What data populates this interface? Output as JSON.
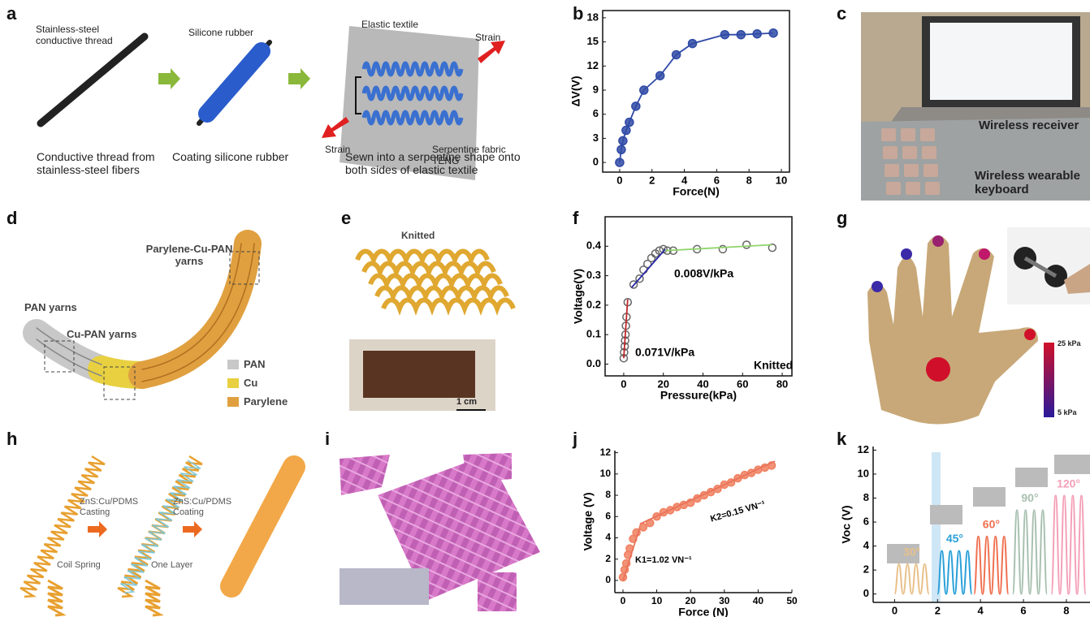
{
  "panel_labels": [
    "a",
    "b",
    "c",
    "d",
    "e",
    "f",
    "g",
    "h",
    "i",
    "j",
    "k"
  ],
  "panel_a": {
    "thread_label": "Stainless-steel conductive thread",
    "rubber_label": "Silicone rubber",
    "textile_label": "Elastic textile",
    "strain_right": "Strain",
    "strain_left": "Strain",
    "teng_label": "Serpentine fabric TENG",
    "captions": [
      "Conductive thread from stainless-steel fibers",
      "Coating silicone rubber",
      "Sewn into a serpentine shape onto both sides of elastic textile"
    ]
  },
  "panel_c": {
    "labels": [
      "Wireless receiver",
      "Wireless wearable keyboard"
    ]
  },
  "panel_d": {
    "labels": [
      "Parylene-Cu-PAN yarns",
      "PAN yarns",
      "Cu-PAN yarns"
    ],
    "legend": [
      "PAN",
      "Cu",
      "Parylene"
    ]
  },
  "panel_e": {
    "title": "Knitted",
    "scale": "1 cm"
  },
  "panel_g": {
    "colorbar": [
      "25 kPa",
      "5 kPa"
    ]
  },
  "panel_h": {
    "labels": [
      "ZnS:Cu/PDMS Casting",
      "ZnS:Cu/PDMS Coating",
      "Coil Spring",
      "One Layer"
    ]
  },
  "chart_data": [
    {
      "type": "line",
      "xlabel": "Force(N)",
      "ylabel": "ΔV(V)",
      "x": [
        0,
        0.1,
        0.2,
        0.4,
        0.6,
        1,
        1.5,
        2.5,
        3.5,
        4.5,
        6.5,
        7.5,
        8.5,
        9.5
      ],
      "values": [
        0,
        1.6,
        2.7,
        4,
        5,
        7,
        9,
        10.8,
        13.4,
        14.8,
        15.9,
        15.9,
        16,
        16.1
      ],
      "color": "#2f4aa6",
      "markers": true,
      "xlim": [
        -1.05,
        10.5
      ],
      "ylim": [
        -1.2,
        18.9
      ],
      "xticks": [
        0,
        2,
        4,
        6,
        8,
        10
      ],
      "yticks": [
        0,
        3,
        6,
        9,
        12,
        15,
        18
      ]
    },
    {
      "type": "scatter",
      "xlabel": "Pressure(kPa)",
      "ylabel": "Voltage(V)",
      "x": [
        0,
        0.2,
        0.5,
        0.7,
        0.9,
        1.1,
        1.4,
        2,
        5,
        8,
        10,
        12,
        14,
        16,
        18,
        20,
        22,
        25,
        37,
        50,
        62,
        75
      ],
      "values": [
        0.02,
        0.04,
        0.06,
        0.08,
        0.1,
        0.13,
        0.16,
        0.21,
        0.27,
        0.29,
        0.32,
        0.34,
        0.36,
        0.375,
        0.385,
        0.39,
        0.385,
        0.385,
        0.39,
        0.39,
        0.405,
        0.395
      ],
      "color": "#666666",
      "fits": [
        {
          "color": "#c0282c",
          "x": [
            0,
            2
          ],
          "values": [
            0.02,
            0.22
          ]
        },
        {
          "color": "#2a2aa8",
          "x": [
            4,
            21
          ],
          "values": [
            0.26,
            0.39
          ]
        },
        {
          "color": "#8fd46a",
          "x": [
            21,
            75
          ],
          "values": [
            0.385,
            0.405
          ]
        }
      ],
      "annotations": [
        "0.008V/kPa",
        "0.071V/kPa",
        "Knitted"
      ],
      "xlim": [
        -9.4,
        84.9
      ],
      "ylim": [
        -0.04,
        0.5
      ],
      "xticks": [
        0,
        20,
        40,
        60,
        80
      ],
      "yticks": [
        {
          "value": 0,
          "label": "0.0"
        },
        0.1,
        0.2,
        0.3,
        0.4
      ]
    },
    {
      "type": "scatter",
      "xlabel": "Force (N)",
      "ylabel": "Voltage (V)",
      "x": [
        0,
        0.5,
        1,
        1.5,
        2,
        3,
        4,
        6,
        8,
        10,
        12,
        14,
        16,
        18,
        20,
        22,
        24,
        26,
        28,
        30,
        32,
        34,
        36,
        38,
        40,
        42,
        44
      ],
      "values": [
        0.3,
        1,
        1.6,
        2.4,
        3,
        3.9,
        4.5,
        5,
        5.4,
        6,
        6.4,
        6.6,
        6.9,
        7.1,
        7.3,
        7.7,
        8,
        8.3,
        8.6,
        9,
        9.2,
        9.6,
        9.9,
        10.1,
        10.4,
        10.6,
        10.8
      ],
      "color": "#f08060",
      "fits": [
        {
          "color": "#e8735a",
          "x": [
            0,
            5
          ],
          "values": [
            0,
            5
          ]
        },
        {
          "color": "#e8735a",
          "x": [
            5,
            45
          ],
          "values": [
            5.3,
            11.2
          ]
        }
      ],
      "annotations": [
        "K2=0.15 VN⁻¹",
        "K1=1.02 VN⁻¹"
      ],
      "xlim": [
        -2.4,
        50
      ],
      "ylim": [
        -1.15,
        12.2
      ],
      "xticks": [
        0,
        10,
        20,
        30,
        40,
        50
      ],
      "yticks": [
        0,
        2,
        4,
        6,
        8,
        10,
        12
      ]
    },
    {
      "type": "line",
      "ylabel": "Voc (V)",
      "smooth": true,
      "series": [
        {
          "name": "30°",
          "color": "#e8c08a",
          "x": [
            0,
            0.2,
            0.4,
            0.6,
            0.8,
            1,
            1.2,
            1.4,
            1.6
          ],
          "values": [
            0,
            2.5,
            0,
            2.5,
            0,
            2.5,
            0,
            2.5,
            0
          ]
        },
        {
          "name": "45°",
          "color": "#2aa0d8",
          "x": [
            2,
            2.2,
            2.4,
            2.6,
            2.8,
            3,
            3.2,
            3.4,
            3.6
          ],
          "values": [
            0,
            3.6,
            0,
            3.6,
            0,
            3.6,
            0,
            3.6,
            0
          ]
        },
        {
          "name": "60°",
          "color": "#f07050",
          "x": [
            3.7,
            3.9,
            4.1,
            4.3,
            4.5,
            4.7,
            4.9,
            5.1,
            5.3
          ],
          "values": [
            0,
            4.8,
            0,
            4.8,
            0,
            4.8,
            0,
            4.8,
            0
          ]
        },
        {
          "name": "90°",
          "color": "#a8c0b0",
          "x": [
            5.5,
            5.7,
            5.9,
            6.1,
            6.3,
            6.5,
            6.7,
            6.9,
            7.1
          ],
          "values": [
            0,
            7,
            0,
            7,
            0,
            7,
            0,
            7,
            0
          ]
        },
        {
          "name": "120°",
          "color": "#f4a0b8",
          "x": [
            7.3,
            7.5,
            7.7,
            7.9,
            8.1,
            8.3,
            8.5,
            8.7,
            8.9
          ],
          "values": [
            0,
            8.2,
            0,
            8.2,
            0,
            8.2,
            0,
            8.2,
            0
          ]
        }
      ],
      "xlim": [
        -1,
        9.1
      ],
      "ylim": [
        -0.7,
        12.3
      ],
      "xticks": [
        0,
        2,
        4,
        6,
        8
      ],
      "yticks": [
        0,
        2,
        4,
        6,
        8,
        10,
        12
      ]
    }
  ]
}
